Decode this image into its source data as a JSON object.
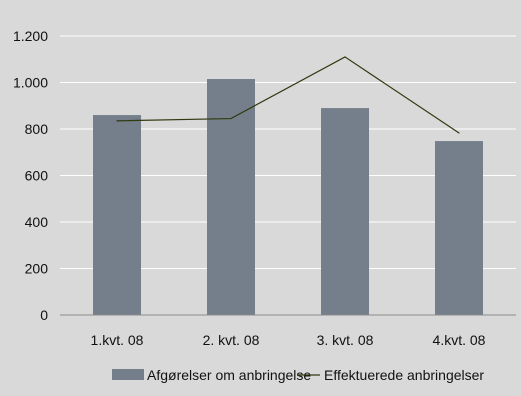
{
  "chart_data": {
    "type": "bar",
    "categories": [
      "1.kvt. 08",
      "2. kvt. 08",
      "3. kvt. 08",
      "4.kvt. 08"
    ],
    "series": [
      {
        "name": "Afgørelser om anbringelse",
        "type": "bar",
        "values": [
          860,
          1015,
          890,
          748
        ],
        "color": "#747f8b"
      },
      {
        "name": "Effektuerede anbringelser",
        "type": "line",
        "values": [
          835,
          845,
          1110,
          783
        ],
        "color": "#2f3a10"
      }
    ],
    "ylim": [
      0,
      1200
    ],
    "yticks": [
      0,
      200,
      400,
      600,
      800,
      1000,
      1200
    ],
    "ytick_labels": [
      "0",
      "200",
      "400",
      "600",
      "800",
      "1.000",
      "1.200"
    ],
    "grid": true,
    "legend": "bottom",
    "colors": {
      "background": "#d9d9d9",
      "gridline": "#ffffff"
    }
  }
}
